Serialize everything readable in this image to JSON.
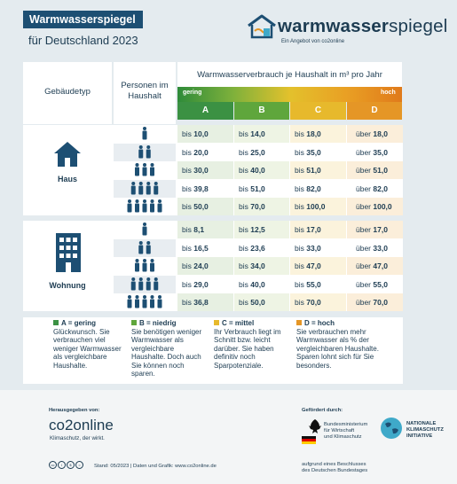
{
  "header": {
    "title": "Warmwasserspiegel",
    "subtitle": "für Deutschland 2023",
    "logo_text_a": "warmwasser",
    "logo_text_b": "spiegel",
    "logo_sub": "Ein Angebot von co2online"
  },
  "table": {
    "col_building": "Gebäudetyp",
    "col_persons": "Personen im Haushalt",
    "col_consumption": "Warmwasserverbrauch je Haushalt in m³ pro Jahr",
    "scale_low": "gering",
    "scale_high": "hoch",
    "classes": [
      "A",
      "B",
      "C",
      "D"
    ],
    "class_colors": [
      "#3b9143",
      "#5fa63c",
      "#e7b92c",
      "#e59626"
    ],
    "haus": {
      "label": "Haus",
      "rows": [
        {
          "persons": 1,
          "a": "bis 10,0",
          "b": "bis 14,0",
          "c": "bis 18,0",
          "d": "über 18,0"
        },
        {
          "persons": 2,
          "a": "bis 20,0",
          "b": "bis 25,0",
          "c": "bis 35,0",
          "d": "über 35,0"
        },
        {
          "persons": 3,
          "a": "bis 30,0",
          "b": "bis 40,0",
          "c": "bis 51,0",
          "d": "über 51,0"
        },
        {
          "persons": 4,
          "a": "bis 39,8",
          "b": "bis 51,0",
          "c": "bis 82,0",
          "d": "über 82,0"
        },
        {
          "persons": 5,
          "a": "bis 50,0",
          "b": "bis 70,0",
          "c": "bis 100,0",
          "d": "über 100,0"
        }
      ]
    },
    "wohnung": {
      "label": "Wohnung",
      "rows": [
        {
          "persons": 1,
          "a": "bis 8,1",
          "b": "bis 12,5",
          "c": "bis 17,0",
          "d": "über 17,0"
        },
        {
          "persons": 2,
          "a": "bis 16,5",
          "b": "bis 23,6",
          "c": "bis 33,0",
          "d": "über 33,0"
        },
        {
          "persons": 3,
          "a": "bis 24,0",
          "b": "bis 34,0",
          "c": "bis 47,0",
          "d": "über 47,0"
        },
        {
          "persons": 4,
          "a": "bis 29,0",
          "b": "bis 40,0",
          "c": "bis 55,0",
          "d": "über 55,0"
        },
        {
          "persons": 5,
          "a": "bis 36,8",
          "b": "bis 50,0",
          "c": "bis 70,0",
          "d": "über 70,0"
        }
      ]
    }
  },
  "legend": [
    {
      "title": "A = gering",
      "text": "Glückwunsch. Sie verbrauchen viel weniger Warmwasser als vergleichbare Haushalte.",
      "color": "#3b9143"
    },
    {
      "title": "B = niedrig",
      "text": "Sie benötigen weniger Warmwasser als vergleichbare Haushalte. Doch auch Sie können noch sparen.",
      "color": "#5fa63c"
    },
    {
      "title": "C = mittel",
      "text": "Ihr Verbrauch liegt im Schnitt bzw. leicht darüber. Sie haben definitiv noch Sparpotenziale.",
      "color": "#e7b92c"
    },
    {
      "title": "D = hoch",
      "text": "Sie verbrauchen mehr Warmwasser als % der vergleichbaren Haushalte. Sparen lohnt sich für Sie besonders.",
      "color": "#e59626"
    }
  ],
  "footer": {
    "published_by": "Herausgegeben von:",
    "co2online": "co2online",
    "co2online_sub": "Klimaschutz, der wirkt.",
    "stand": "Stand: 05/2023 | Daten und Grafik: www.co2online.de",
    "funded_by": "Gefördert durch:",
    "ministry_line1": "Bundesministerium",
    "ministry_line2": "für Wirtschaft",
    "ministry_line3": "und Klimaschutz",
    "nki_line1": "NATIONALE",
    "nki_line2": "KLIMASCHUTZ",
    "nki_line3": "INITIATIVE",
    "bundestag_line1": "aufgrund eines Beschlusses",
    "bundestag_line2": "des Deutschen Bundestages"
  }
}
